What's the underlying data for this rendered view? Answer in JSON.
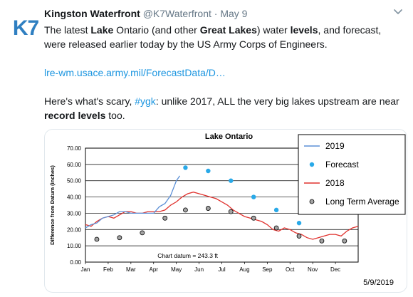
{
  "tweet": {
    "author_name": "Kingston Waterfront",
    "author_handle": "@K7Waterfront",
    "separator": "·",
    "date": "May 9",
    "avatar_text": "K7",
    "text_line1": [
      {
        "t": "The latest ",
        "b": false
      },
      {
        "t": "Lake",
        "b": true
      },
      {
        "t": " Ontario (and other ",
        "b": false
      },
      {
        "t": "Great Lakes",
        "b": true
      },
      {
        "t": ") water ",
        "b": false
      },
      {
        "t": "levels",
        "b": true
      },
      {
        "t": ", and forecast, were released earlier today by the US Army Corps of Engineers.",
        "b": false
      }
    ],
    "link_text": "lre-wm.usace.army.mil/ForecastData/D…",
    "text_line2_pre": "Here's what's scary, ",
    "hashtag": "#ygk",
    "text_line2_mid": ": unlike 2017, ALL the very big lakes upstream are near ",
    "text_line2_bold": "record levels",
    "text_line2_post": " too."
  },
  "colors": {
    "accent": "#1b95e0",
    "avatar_blue": "#2f7fc1",
    "series_2019": "#5b8fd6",
    "series_forecast": "#29a9e8",
    "series_2018": "#e0322e",
    "series_lta_fill": "#a3a3a3"
  },
  "chart_data": {
    "type": "line",
    "title": "Lake Ontario",
    "ylabel": "Difference from Datum (inches)",
    "ylim": [
      0,
      70
    ],
    "yticks": [
      "0.00",
      "10.00",
      "20.00",
      "30.00",
      "40.00",
      "50.00",
      "60.00",
      "70.00"
    ],
    "months": [
      "Jan",
      "Feb",
      "Mar",
      "Apr",
      "May",
      "Jun",
      "Jul",
      "Aug",
      "Sep",
      "Oct",
      "Nov",
      "Dec"
    ],
    "annotation": "Chart datum = 243.3 ft",
    "date_label": "5/9/2019",
    "legend": [
      "2019",
      "Forecast",
      "2018",
      "Long Term Average"
    ],
    "series": [
      {
        "name": "2019",
        "x": [
          0,
          0.25,
          0.5,
          0.75,
          1,
          1.25,
          1.5,
          1.75,
          2,
          2.25,
          2.5,
          2.75,
          3,
          3.25,
          3.5,
          3.75,
          4,
          4.15
        ],
        "y": [
          21,
          23,
          24,
          27,
          28,
          29,
          31,
          31,
          30,
          30,
          30,
          30,
          30,
          34,
          36,
          41,
          50,
          53
        ]
      },
      {
        "name": "2018",
        "x": [
          0,
          0.25,
          0.5,
          0.75,
          1,
          1.25,
          1.5,
          1.75,
          2,
          2.25,
          2.5,
          2.75,
          3,
          3.25,
          3.5,
          3.75,
          4,
          4.25,
          4.5,
          4.75,
          5,
          5.25,
          5.5,
          5.75,
          6,
          6.25,
          6.5,
          6.75,
          7,
          7.25,
          7.5,
          7.75,
          8,
          8.25,
          8.5,
          8.75,
          9,
          9.25,
          9.5,
          9.75,
          10,
          10.25,
          10.5,
          10.75,
          11,
          11.25,
          11.5,
          11.75,
          12
        ],
        "y": [
          23,
          22,
          25,
          27,
          28,
          27,
          29,
          31,
          31,
          30,
          30,
          31,
          31,
          31,
          32,
          35,
          37,
          40,
          42,
          43,
          42,
          41,
          40,
          39,
          37,
          35,
          32,
          30,
          28,
          27,
          26,
          25,
          23,
          20,
          19,
          21,
          20,
          18,
          17,
          15,
          14,
          15,
          16,
          17,
          17,
          16,
          19,
          21,
          22
        ]
      },
      {
        "name": "Forecast",
        "x": [
          4.4,
          5.4,
          6.4,
          7.4,
          8.4,
          9.4
        ],
        "y": [
          58,
          56,
          50,
          40,
          32,
          24
        ]
      },
      {
        "name": "Long Term Average",
        "x": [
          0.5,
          1.5,
          2.5,
          3.5,
          4.4,
          5.4,
          6.4,
          7.4,
          8.4,
          9.4,
          10.4,
          11.4
        ],
        "y": [
          14,
          15,
          18,
          27,
          32,
          33,
          31,
          27,
          21,
          16,
          13,
          13
        ]
      }
    ]
  }
}
